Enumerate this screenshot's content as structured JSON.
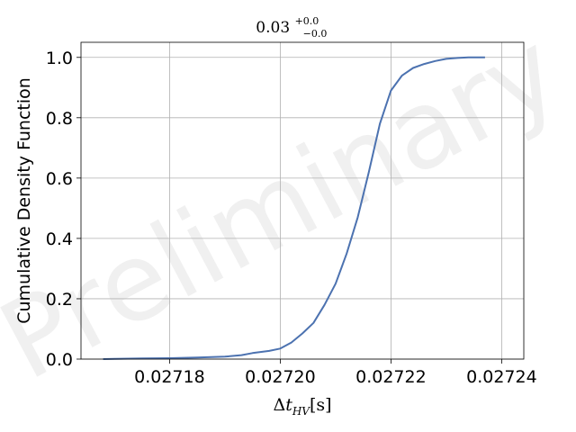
{
  "chart_data": {
    "type": "line",
    "title": {
      "base": "0.03",
      "sup": "+0.0",
      "sub": "−0.0"
    },
    "xlabel": {
      "delta": "Δ",
      "var": "t",
      "sub": "HV",
      "unit": "[s]"
    },
    "ylabel": "Cumulative Density Function",
    "xlim": [
      0.027164,
      0.027244
    ],
    "ylim": [
      0.0,
      1.05
    ],
    "xticks": [
      "0.02718",
      "0.02720",
      "0.02722",
      "0.02724"
    ],
    "xtick_values": [
      0.02718,
      0.0272,
      0.02722,
      0.02724
    ],
    "yticks": [
      "0.0",
      "0.2",
      "0.4",
      "0.6",
      "0.8",
      "1.0"
    ],
    "ytick_values": [
      0.0,
      0.2,
      0.4,
      0.6,
      0.8,
      1.0
    ],
    "grid": true,
    "series": [
      {
        "color": "#4c72b0",
        "x": [
          0.027168,
          0.02717,
          0.027175,
          0.02718,
          0.027185,
          0.02719,
          0.027193,
          0.027195,
          0.027198,
          0.0272,
          0.027202,
          0.027204,
          0.027206,
          0.027208,
          0.02721,
          0.027212,
          0.027214,
          0.027216,
          0.027218,
          0.02722,
          0.027222,
          0.027224,
          0.027226,
          0.027228,
          0.02723,
          0.027232,
          0.027234,
          0.027237
        ],
        "y": [
          0.0,
          0.001,
          0.002,
          0.003,
          0.005,
          0.008,
          0.013,
          0.02,
          0.027,
          0.035,
          0.055,
          0.085,
          0.12,
          0.18,
          0.25,
          0.35,
          0.47,
          0.62,
          0.78,
          0.89,
          0.94,
          0.965,
          0.978,
          0.988,
          0.995,
          0.998,
          1.0,
          1.0
        ]
      }
    ]
  },
  "watermark": "Preliminary"
}
